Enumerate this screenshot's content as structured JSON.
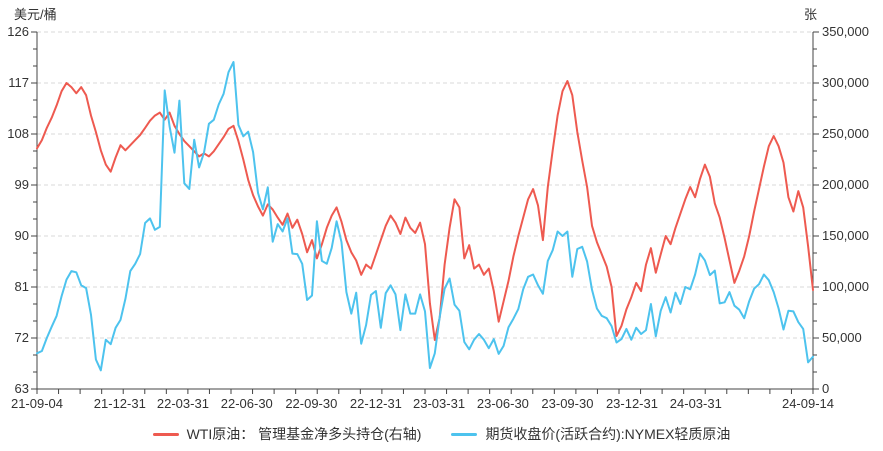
{
  "chart": {
    "left_axis": {
      "unit": "美元/桶",
      "min": 63,
      "max": 126,
      "major_step": 9,
      "minor_step": 3,
      "tick_labels": [
        "126",
        "117",
        "108",
        "99",
        "90",
        "81",
        "72",
        "63"
      ]
    },
    "right_axis": {
      "unit": "张",
      "min": 0,
      "max": 350000,
      "major_step": 50000,
      "tick_labels": [
        "350,000",
        "300,000",
        "250,000",
        "200,000",
        "150,000",
        "100,000",
        "50,000",
        "0"
      ]
    },
    "colors": {
      "red_line": "#ee5a50",
      "blue_line": "#4dc3ee",
      "grid": "#d9d9d9",
      "axis": "#444444",
      "text": "#333333"
    }
  },
  "legend": {
    "items": [
      {
        "label": "WTI原油： 管理基金净多头持仓(右轴)",
        "color": "#ee5a50"
      },
      {
        "label": "期货收盘价(活跃合约):NYMEX轻质原油",
        "color": "#4dc3ee"
      }
    ]
  },
  "chart_data": {
    "type": "line",
    "x_unit": "weekly dates",
    "x_total_weeks": 158,
    "x_labels": [
      {
        "label": "21-09-04",
        "week": 0
      },
      {
        "label": "21-12-31",
        "week": 16.86
      },
      {
        "label": "22-03-31",
        "week": 29.71
      },
      {
        "label": "22-06-30",
        "week": 42.71
      },
      {
        "label": "22-09-30",
        "week": 55.86
      },
      {
        "label": "22-12-31",
        "week": 69.0
      },
      {
        "label": "23-03-31",
        "week": 81.86
      },
      {
        "label": "23-06-30",
        "week": 94.86
      },
      {
        "label": "23-09-30",
        "week": 108.0
      },
      {
        "label": "23-12-31",
        "week": 121.14
      },
      {
        "label": "24-03-31",
        "week": 134.14
      },
      {
        "label": "24-09-14",
        "week": 158.0
      }
    ],
    "grid": "dashed-horizontal",
    "legend_position": "bottom",
    "series": [
      {
        "name": "WTI原油： 管理基金净多头持仓(右轴)",
        "axis": "right",
        "color": "#ee5a50",
        "ylim": [
          0,
          350000
        ],
        "values": [
          236000,
          244000,
          256000,
          266000,
          278000,
          292000,
          300000,
          296000,
          290000,
          296000,
          288000,
          268000,
          252000,
          234000,
          220000,
          213000,
          227000,
          239000,
          234000,
          239000,
          244000,
          249000,
          256000,
          263000,
          268000,
          271000,
          264000,
          271000,
          258000,
          250000,
          243000,
          238000,
          233000,
          228000,
          231000,
          228000,
          233000,
          240000,
          247000,
          255000,
          258000,
          243000,
          225000,
          205000,
          190000,
          179000,
          170000,
          181000,
          176000,
          168000,
          161000,
          172000,
          158000,
          166000,
          152000,
          134000,
          146000,
          128000,
          142000,
          158000,
          170000,
          178000,
          164000,
          146000,
          134000,
          126000,
          112000,
          122000,
          118000,
          132000,
          146000,
          160000,
          170000,
          163000,
          152000,
          168000,
          158000,
          153000,
          163000,
          142000,
          84000,
          48000,
          70000,
          122000,
          158000,
          186000,
          178000,
          128000,
          141000,
          118000,
          122000,
          112000,
          118000,
          96000,
          66000,
          86000,
          106000,
          130000,
          150000,
          168000,
          186000,
          196000,
          180000,
          146000,
          198000,
          234000,
          268000,
          292000,
          302000,
          288000,
          252000,
          224000,
          198000,
          160000,
          144000,
          132000,
          120000,
          100000,
          52000,
          62000,
          78000,
          90000,
          104000,
          96000,
          122000,
          138000,
          114000,
          132000,
          150000,
          142000,
          158000,
          172000,
          186000,
          198000,
          188000,
          206000,
          220000,
          208000,
          182000,
          168000,
          148000,
          126000,
          104000,
          116000,
          130000,
          150000,
          174000,
          196000,
          218000,
          238000,
          248000,
          238000,
          222000,
          188000,
          174000,
          194000,
          178000,
          140000,
          97000
        ]
      },
      {
        "name": "期货收盘价(活跃合约):NYMEX轻质原油",
        "axis": "left",
        "color": "#4dc3ee",
        "ylim": [
          63,
          126
        ],
        "values": [
          69.3,
          69.7,
          72.0,
          74.0,
          75.9,
          79.4,
          82.3,
          83.8,
          83.6,
          81.3,
          80.8,
          76.1,
          68.2,
          66.3,
          71.7,
          70.9,
          73.8,
          75.2,
          78.9,
          83.8,
          85.1,
          86.8,
          92.3,
          93.1,
          91.1,
          91.6,
          115.7,
          109.3,
          104.7,
          113.9,
          99.3,
          98.3,
          107.0,
          102.1,
          104.7,
          109.8,
          110.5,
          113.2,
          115.1,
          118.9,
          120.7,
          109.6,
          107.6,
          108.4,
          104.8,
          97.6,
          94.7,
          98.6,
          89.0,
          92.1,
          90.8,
          93.1,
          86.9,
          86.8,
          85.1,
          78.7,
          79.5,
          92.6,
          85.6,
          85.1,
          87.9,
          92.6,
          88.9,
          80.1,
          76.3,
          80.0,
          71.0,
          74.3,
          79.6,
          80.3,
          73.8,
          79.9,
          81.3,
          79.7,
          73.4,
          79.7,
          76.3,
          76.3,
          79.7,
          76.7,
          66.7,
          69.3,
          75.7,
          80.7,
          82.5,
          77.9,
          76.8,
          71.3,
          70.0,
          71.7,
          72.7,
          71.7,
          70.2,
          71.8,
          69.2,
          70.6,
          73.9,
          75.4,
          77.1,
          80.6,
          82.8,
          83.2,
          81.3,
          79.8,
          85.6,
          87.5,
          90.8,
          90.0,
          90.8,
          82.8,
          87.7,
          88.1,
          85.5,
          80.5,
          77.2,
          75.9,
          75.5,
          74.1,
          71.2,
          71.8,
          73.6,
          71.7,
          73.8,
          72.7,
          73.4,
          78.0,
          72.3,
          76.8,
          79.2,
          76.5,
          80.0,
          78.0,
          81.0,
          80.6,
          83.2,
          86.9,
          85.7,
          83.1,
          83.9,
          78.1,
          78.3,
          80.1,
          77.7,
          77.0,
          75.5,
          78.5,
          80.7,
          81.5,
          83.2,
          82.2,
          80.1,
          77.2,
          73.5,
          76.8,
          76.7,
          74.8,
          73.6,
          67.7,
          68.7
        ]
      }
    ]
  }
}
